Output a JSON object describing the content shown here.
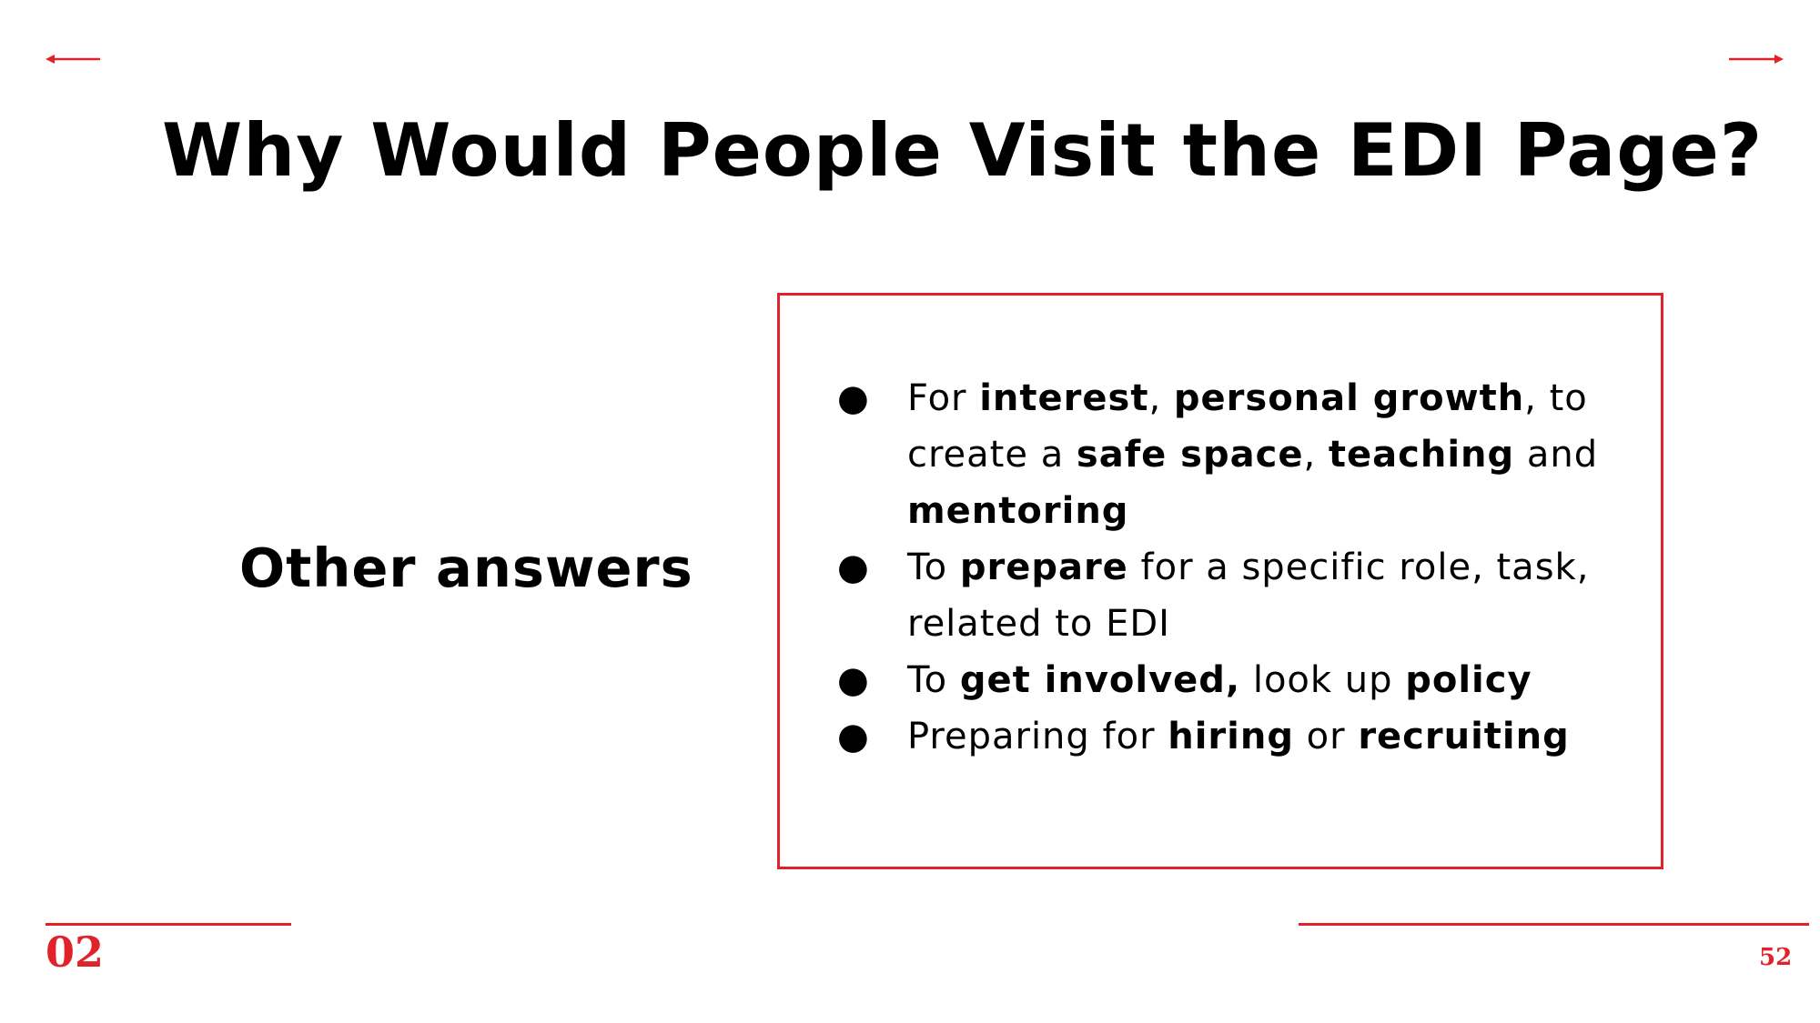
{
  "nav": {
    "prev_icon": "arrow-left-icon",
    "next_icon": "arrow-right-icon"
  },
  "slide": {
    "title": "Why Would People Visit the EDI Page?",
    "side_label": "Other answers",
    "answers": [
      {
        "segments": [
          {
            "text": "For ",
            "bold": false
          },
          {
            "text": "interest",
            "bold": true
          },
          {
            "text": ", ",
            "bold": false
          },
          {
            "text": "personal growth",
            "bold": true
          },
          {
            "text": ", to create a ",
            "bold": false
          },
          {
            "text": "safe space",
            "bold": true
          },
          {
            "text": ", ",
            "bold": false
          },
          {
            "text": "teaching",
            "bold": true
          },
          {
            "text": " and ",
            "bold": false
          },
          {
            "text": "mentoring",
            "bold": true
          }
        ]
      },
      {
        "segments": [
          {
            "text": "To ",
            "bold": false
          },
          {
            "text": "prepare",
            "bold": true
          },
          {
            "text": " for a specific role, task, related to EDI",
            "bold": false
          }
        ]
      },
      {
        "segments": [
          {
            "text": "To ",
            "bold": false
          },
          {
            "text": "get involved,",
            "bold": true
          },
          {
            "text": " look up ",
            "bold": false
          },
          {
            "text": "policy",
            "bold": true
          }
        ]
      },
      {
        "segments": [
          {
            "text": "Preparing for ",
            "bold": false
          },
          {
            "text": "hiring",
            "bold": true
          },
          {
            "text": " or ",
            "bold": false
          },
          {
            "text": "recruiting",
            "bold": true
          }
        ]
      }
    ]
  },
  "footer": {
    "section_number": "02",
    "page_number": "52"
  },
  "colors": {
    "accent": "#e2222a",
    "text": "#000000",
    "background": "#ffffff"
  }
}
